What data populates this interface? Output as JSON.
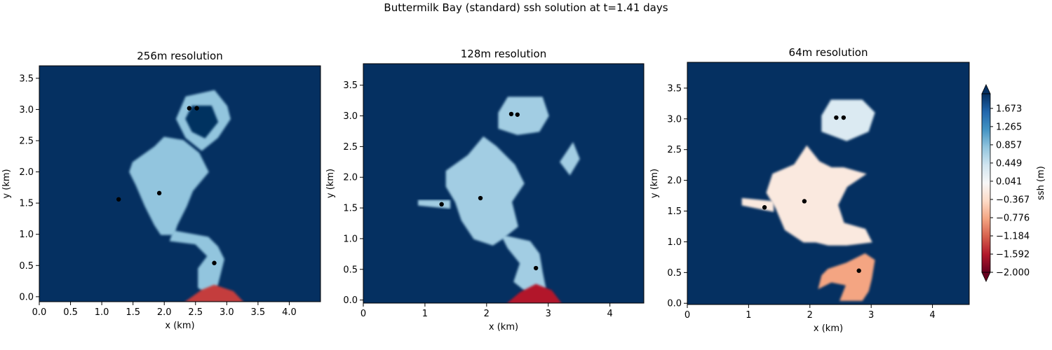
{
  "figure": {
    "suptitle": "Buttermilk Bay (standard) ssh solution at t=1.41 days"
  },
  "colors": {
    "ocean_high": "#08306b",
    "mid_blue": "#5b9fcf",
    "light_blue": "#8fbfdf",
    "pale_blue": "#eaf1f7",
    "peach": "#fbe0cf",
    "salmon": "#ef9a7a",
    "dark_red": "#8b0a1f",
    "marker": "#000000"
  },
  "chart_data": [
    {
      "type": "heatmap",
      "title": "256m resolution",
      "xlabel": "x (km)",
      "ylabel": "y (km)",
      "xlim": [
        0,
        4.5
      ],
      "ylim": [
        -0.08,
        3.7
      ],
      "xticks": [
        0.0,
        0.5,
        1.0,
        1.5,
        2.0,
        2.5,
        3.0,
        3.5,
        4.0
      ],
      "xtick_labels": [
        "0.0",
        "0.5",
        "1.0",
        "1.5",
        "2.0",
        "2.5",
        "3.0",
        "3.5",
        "4.0"
      ],
      "yticks": [
        0.0,
        0.5,
        1.0,
        1.5,
        2.0,
        2.5,
        3.0,
        3.5
      ],
      "ytick_labels": [
        "0.0",
        "0.5",
        "1.0",
        "1.5",
        "2.0",
        "2.5",
        "3.0",
        "3.5"
      ],
      "background_value": 2.0,
      "regions": [
        {
          "kind": "main-basin",
          "value": 0.8,
          "points": [
            [
              1.5,
              2.15
            ],
            [
              1.85,
              2.4
            ],
            [
              2.0,
              2.55
            ],
            [
              2.3,
              2.5
            ],
            [
              2.55,
              2.3
            ],
            [
              2.7,
              2.0
            ],
            [
              2.45,
              1.7
            ],
            [
              2.35,
              1.45
            ],
            [
              2.2,
              1.15
            ],
            [
              2.15,
              1.0
            ],
            [
              1.95,
              1.0
            ],
            [
              1.85,
              1.15
            ],
            [
              1.7,
              1.45
            ],
            [
              1.55,
              1.8
            ],
            [
              1.45,
              2.0
            ]
          ]
        },
        {
          "kind": "upper-ring",
          "value": 0.8,
          "points": [
            [
              2.35,
              3.2
            ],
            [
              2.8,
              3.3
            ],
            [
              3.0,
              3.05
            ],
            [
              3.05,
              2.85
            ],
            [
              2.85,
              2.55
            ],
            [
              2.6,
              2.35
            ],
            [
              2.35,
              2.55
            ],
            [
              2.2,
              2.85
            ]
          ]
        },
        {
          "kind": "upper-ring-hole",
          "value": 2.0,
          "points": [
            [
              2.45,
              3.05
            ],
            [
              2.75,
              3.05
            ],
            [
              2.85,
              2.8
            ],
            [
              2.65,
              2.55
            ],
            [
              2.45,
              2.65
            ],
            [
              2.35,
              2.85
            ]
          ]
        },
        {
          "kind": "channel",
          "value": 0.8,
          "points": [
            [
              2.15,
              1.05
            ],
            [
              2.7,
              0.95
            ],
            [
              2.85,
              0.8
            ],
            [
              2.95,
              0.6
            ],
            [
              2.85,
              0.2
            ],
            [
              2.75,
              0.0
            ],
            [
              2.55,
              0.15
            ],
            [
              2.55,
              0.45
            ],
            [
              2.7,
              0.65
            ],
            [
              2.5,
              0.85
            ],
            [
              2.1,
              0.9
            ]
          ]
        },
        {
          "kind": "mouth-red",
          "value": -1.4,
          "points": [
            [
              2.35,
              -0.08
            ],
            [
              2.6,
              0.1
            ],
            [
              2.8,
              0.18
            ],
            [
              3.1,
              0.08
            ],
            [
              3.25,
              -0.08
            ]
          ]
        }
      ],
      "stations": [
        {
          "x": 2.4,
          "y": 3.02
        },
        {
          "x": 2.52,
          "y": 3.02
        },
        {
          "x": 1.92,
          "y": 1.66
        },
        {
          "x": 1.27,
          "y": 1.56
        },
        {
          "x": 2.8,
          "y": 0.54
        }
      ]
    },
    {
      "type": "heatmap",
      "title": "128m resolution",
      "xlabel": "x (km)",
      "ylabel": "y (km)",
      "xlim": [
        0,
        4.55
      ],
      "ylim": [
        -0.05,
        3.85
      ],
      "xticks": [
        0,
        1,
        2,
        3,
        4
      ],
      "xtick_labels": [
        "0",
        "1",
        "2",
        "3",
        "4"
      ],
      "yticks": [
        0.0,
        0.5,
        1.0,
        1.5,
        2.0,
        2.5,
        3.0,
        3.5
      ],
      "ytick_labels": [
        "0.0",
        "0.5",
        "1.0",
        "1.5",
        "2.0",
        "2.5",
        "3.0",
        "3.5"
      ],
      "background_value": 2.0,
      "regions": [
        {
          "kind": "main-basin",
          "value": 0.7,
          "points": [
            [
              1.35,
              2.1
            ],
            [
              1.7,
              2.35
            ],
            [
              1.95,
              2.65
            ],
            [
              2.15,
              2.5
            ],
            [
              2.45,
              2.2
            ],
            [
              2.6,
              1.9
            ],
            [
              2.4,
              1.6
            ],
            [
              2.5,
              1.2
            ],
            [
              2.25,
              1.0
            ],
            [
              2.1,
              0.9
            ],
            [
              1.8,
              1.0
            ],
            [
              1.6,
              1.3
            ],
            [
              1.5,
              1.6
            ],
            [
              1.35,
              1.85
            ]
          ]
        },
        {
          "kind": "west-channel",
          "value": 0.7,
          "points": [
            [
              0.9,
              1.62
            ],
            [
              1.4,
              1.62
            ],
            [
              1.4,
              1.5
            ],
            [
              0.9,
              1.55
            ]
          ]
        },
        {
          "kind": "upper-lobe",
          "value": 0.7,
          "points": [
            [
              2.2,
              3.05
            ],
            [
              2.35,
              3.3
            ],
            [
              2.9,
              3.3
            ],
            [
              3.0,
              3.0
            ],
            [
              2.85,
              2.75
            ],
            [
              2.5,
              2.7
            ],
            [
              2.2,
              2.8
            ]
          ]
        },
        {
          "kind": "east-spur",
          "value": 0.7,
          "points": [
            [
              3.2,
              2.25
            ],
            [
              3.4,
              2.55
            ],
            [
              3.5,
              2.3
            ],
            [
              3.35,
              2.05
            ]
          ]
        },
        {
          "kind": "channel",
          "value": 0.7,
          "points": [
            [
              2.25,
              1.05
            ],
            [
              2.7,
              0.95
            ],
            [
              2.85,
              0.75
            ],
            [
              2.9,
              0.45
            ],
            [
              2.95,
              0.2
            ],
            [
              2.7,
              0.1
            ],
            [
              2.45,
              0.3
            ],
            [
              2.55,
              0.6
            ],
            [
              2.35,
              0.85
            ]
          ]
        },
        {
          "kind": "mouth-red",
          "value": -1.6,
          "points": [
            [
              2.35,
              -0.05
            ],
            [
              2.55,
              0.12
            ],
            [
              2.8,
              0.25
            ],
            [
              3.05,
              0.15
            ],
            [
              3.2,
              -0.05
            ]
          ]
        }
      ],
      "stations": [
        {
          "x": 2.4,
          "y": 3.03
        },
        {
          "x": 2.5,
          "y": 3.02
        },
        {
          "x": 1.9,
          "y": 1.66
        },
        {
          "x": 1.27,
          "y": 1.56
        },
        {
          "x": 2.8,
          "y": 0.52
        }
      ]
    },
    {
      "type": "heatmap",
      "title": "64m resolution",
      "xlabel": "x (km)",
      "ylabel": "y (km)",
      "xlim": [
        0,
        4.6
      ],
      "ylim": [
        -0.02,
        3.92
      ],
      "xticks": [
        0,
        1,
        2,
        3,
        4
      ],
      "xtick_labels": [
        "0",
        "1",
        "2",
        "3",
        "4"
      ],
      "yticks": [
        0.0,
        0.5,
        1.0,
        1.5,
        2.0,
        2.5,
        3.0,
        3.5
      ],
      "ytick_labels": [
        "0.0",
        "0.5",
        "1.0",
        "1.5",
        "2.0",
        "2.5",
        "3.0",
        "3.5"
      ],
      "background_value": 2.0,
      "regions": [
        {
          "kind": "main-basin",
          "value": -0.2,
          "points": [
            [
              1.4,
              2.1
            ],
            [
              1.75,
              2.25
            ],
            [
              1.95,
              2.55
            ],
            [
              2.15,
              2.3
            ],
            [
              2.35,
              2.2
            ],
            [
              2.55,
              2.2
            ],
            [
              2.9,
              2.1
            ],
            [
              2.6,
              1.9
            ],
            [
              2.45,
              1.6
            ],
            [
              2.55,
              1.3
            ],
            [
              2.9,
              1.2
            ],
            [
              3.0,
              1.0
            ],
            [
              2.6,
              0.95
            ],
            [
              2.3,
              0.95
            ],
            [
              2.1,
              1.0
            ],
            [
              1.9,
              1.0
            ],
            [
              1.6,
              1.2
            ],
            [
              1.45,
              1.55
            ],
            [
              1.3,
              1.8
            ]
          ]
        },
        {
          "kind": "west-channel",
          "value": -0.2,
          "points": [
            [
              0.9,
              1.7
            ],
            [
              1.4,
              1.65
            ],
            [
              1.4,
              1.5
            ],
            [
              0.9,
              1.6
            ]
          ]
        },
        {
          "kind": "upper-lobe",
          "value": 0.3,
          "points": [
            [
              2.2,
              3.05
            ],
            [
              2.35,
              3.3
            ],
            [
              2.85,
              3.3
            ],
            [
              3.05,
              3.1
            ],
            [
              2.95,
              2.8
            ],
            [
              2.6,
              2.65
            ],
            [
              2.2,
              2.8
            ]
          ]
        },
        {
          "kind": "lower-channel",
          "value": -0.8,
          "points": [
            [
              2.3,
              0.55
            ],
            [
              2.6,
              0.65
            ],
            [
              2.9,
              0.8
            ],
            [
              3.05,
              0.7
            ],
            [
              3.0,
              0.4
            ],
            [
              2.95,
              0.2
            ],
            [
              2.85,
              0.05
            ],
            [
              2.5,
              0.05
            ],
            [
              2.6,
              0.3
            ],
            [
              2.35,
              0.35
            ],
            [
              2.15,
              0.25
            ],
            [
              2.2,
              0.45
            ]
          ]
        }
      ],
      "stations": [
        {
          "x": 2.43,
          "y": 3.02
        },
        {
          "x": 2.55,
          "y": 3.02
        },
        {
          "x": 1.91,
          "y": 1.66
        },
        {
          "x": 1.26,
          "y": 1.56
        },
        {
          "x": 2.8,
          "y": 0.53
        }
      ]
    }
  ],
  "colorbar": {
    "label": "ssh (m)",
    "min": -2.0,
    "max": 2.0,
    "extend": "both",
    "ticks": [
      -2.0,
      -1.592,
      -1.184,
      -0.776,
      -0.367,
      0.041,
      0.449,
      0.857,
      1.265,
      1.673
    ],
    "tick_labels": [
      "−2.000",
      "−1.592",
      "−1.184",
      "−0.776",
      "−0.367",
      "0.041",
      "0.449",
      "0.857",
      "1.265",
      "1.673"
    ],
    "colormap_stops": [
      "#67001f",
      "#b2182b",
      "#d6604d",
      "#f4a582",
      "#fddbc7",
      "#f7f7f7",
      "#d1e5f0",
      "#92c5de",
      "#4393c3",
      "#2166ac",
      "#053061"
    ]
  }
}
